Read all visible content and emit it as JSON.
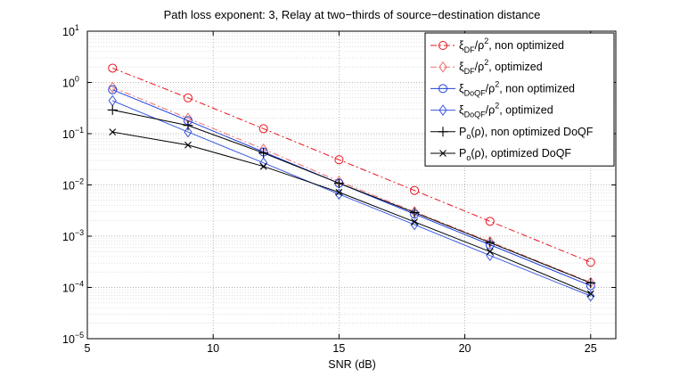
{
  "chart_data": {
    "type": "line",
    "title": "Path loss exponent: 3, Relay at two−thirds of source−destination distance",
    "xlabel": "SNR (dB)",
    "ylabel": "",
    "xlim": [
      5,
      26
    ],
    "ylim": [
      1e-05,
      10
    ],
    "yscale": "log",
    "grid": true,
    "legend_position": "top-right",
    "x_ticks": [
      "5",
      "10",
      "15",
      "20",
      "25"
    ],
    "y_ticks": [
      {
        "base": "10",
        "exp": "1"
      },
      {
        "base": "10",
        "exp": "0"
      },
      {
        "base": "10",
        "exp": "−1"
      },
      {
        "base": "10",
        "exp": "−2"
      },
      {
        "base": "10",
        "exp": "−3"
      },
      {
        "base": "10",
        "exp": "−4"
      },
      {
        "base": "10",
        "exp": "−5"
      }
    ],
    "x": [
      6,
      9,
      12,
      15,
      18,
      21,
      25
    ],
    "series": [
      {
        "name": "ξ_DF/ρ², non optimized",
        "label_main": "ξ",
        "label_sub": "DF",
        "label_mid": "/ρ",
        "label_sup": "2",
        "label_tail": ", non optimized",
        "color": "#e8141e",
        "dash": "7,3,2,3",
        "marker": "circle",
        "values": [
          1.9,
          0.5,
          0.125,
          0.031,
          0.0078,
          0.00195,
          0.00031
        ]
      },
      {
        "name": "ξ_DF/ρ², optimized",
        "label_main": "ξ",
        "label_sub": "DF",
        "label_mid": "/ρ",
        "label_sup": "2",
        "label_tail": ", optimized",
        "color": "#f07070",
        "dash": "7,3,2,3",
        "marker": "diamond",
        "values": [
          0.8,
          0.2,
          0.05,
          0.0118,
          0.003,
          0.00078,
          0.000125
        ]
      },
      {
        "name": "ξ_DoQF/ρ², non optimized",
        "label_main": "ξ",
        "label_sub": "DoQF",
        "label_mid": "/ρ",
        "label_sup": "2",
        "label_tail": ", non optimized",
        "color": "#1f3fd6",
        "dash": "",
        "marker": "circle",
        "values": [
          0.72,
          0.18,
          0.044,
          0.0108,
          0.0027,
          0.00068,
          0.000108
        ]
      },
      {
        "name": "ξ_DoQF/ρ², optimized",
        "label_main": "ξ",
        "label_sub": "DoQF",
        "label_mid": "/ρ",
        "label_sup": "2",
        "label_tail": ", optimized",
        "color": "#3a5ae0",
        "dash": "",
        "marker": "diamond",
        "values": [
          0.44,
          0.108,
          0.027,
          0.0066,
          0.00168,
          0.00042,
          6.8e-05
        ]
      },
      {
        "name": "P_o(ρ), non optimized DoQF",
        "label_main": "P",
        "label_sub": "o",
        "label_mid": "(ρ)",
        "label_sup": "",
        "label_tail": ", non optimized DoQF",
        "color": "#000000",
        "dash": "",
        "marker": "plus",
        "values": [
          0.29,
          0.145,
          0.042,
          0.0108,
          0.0029,
          0.00075,
          0.000122
        ]
      },
      {
        "name": "P_o(ρ), optimized DoQF",
        "label_main": "P",
        "label_sub": "o",
        "label_mid": "(ρ)",
        "label_sup": "",
        "label_tail": ", optimized DoQF",
        "color": "#000000",
        "dash": "",
        "marker": "x",
        "values": [
          0.108,
          0.06,
          0.023,
          0.0072,
          0.0019,
          0.0005,
          7.5e-05
        ]
      }
    ]
  }
}
